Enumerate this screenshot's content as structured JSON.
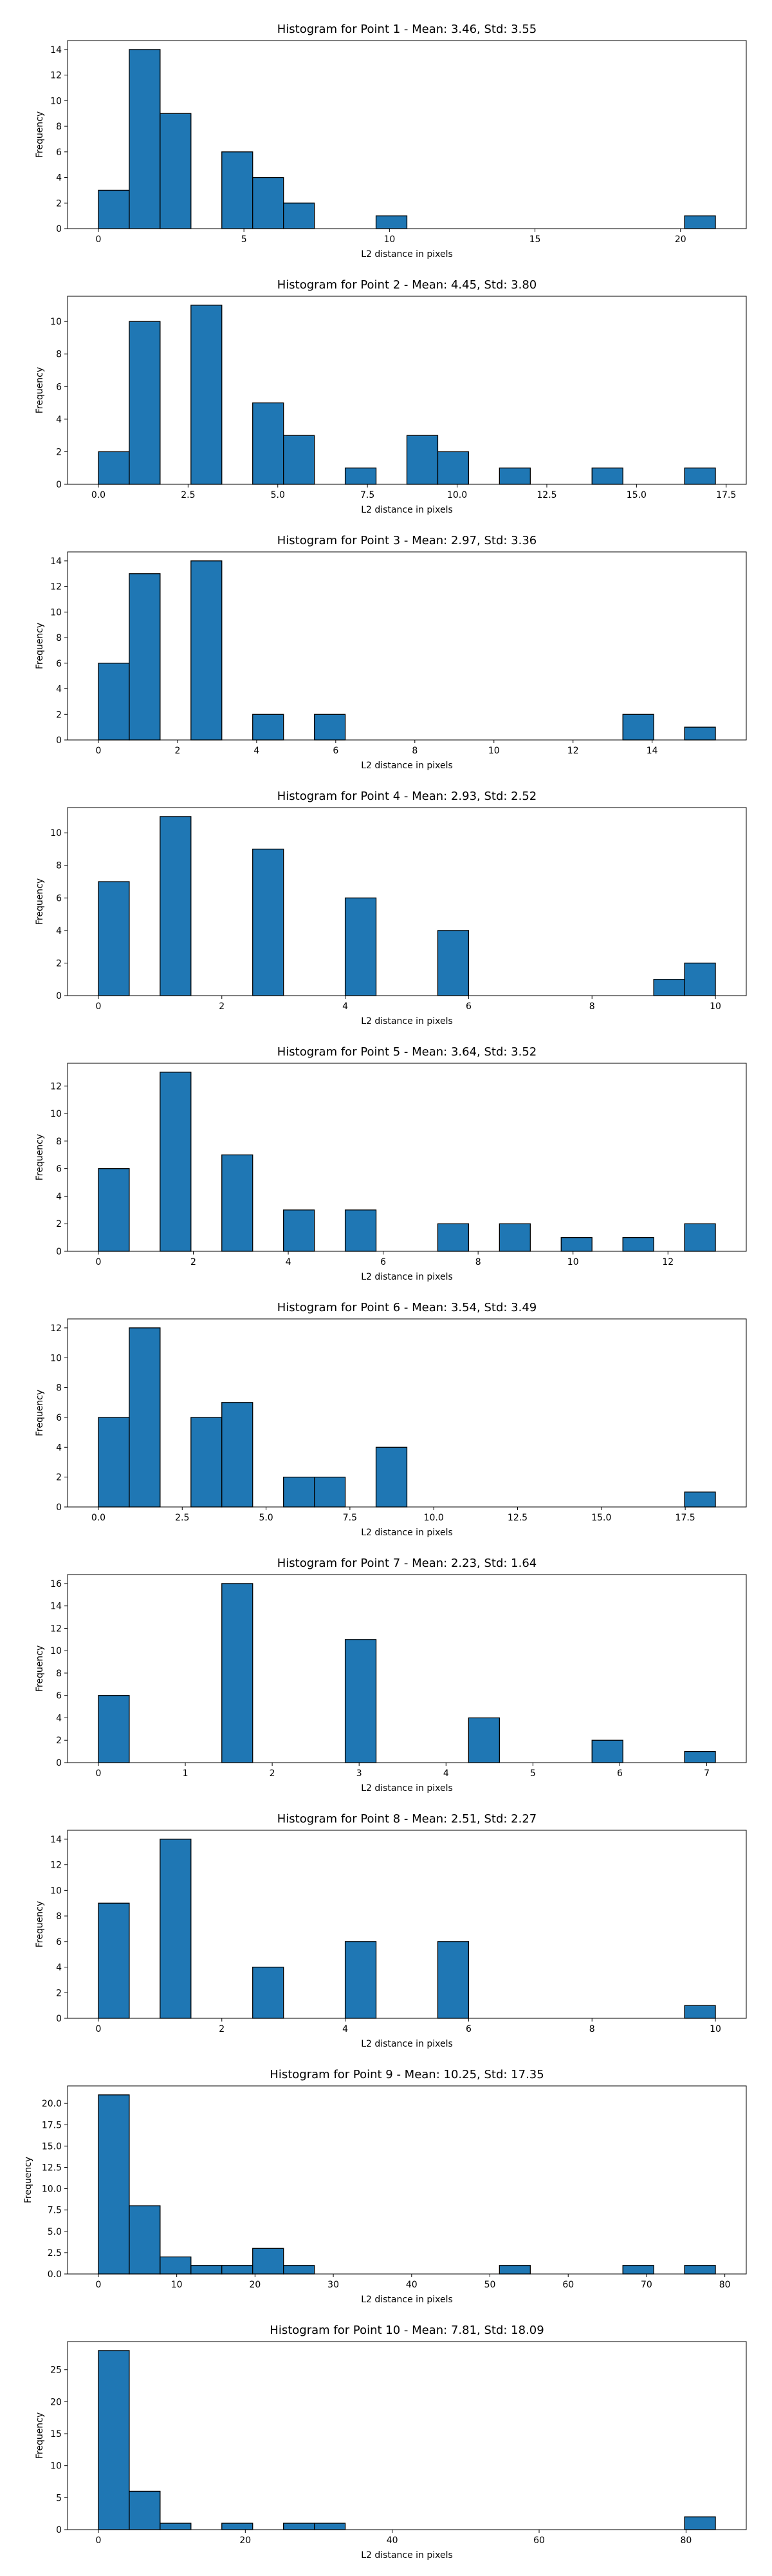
{
  "colors": {
    "bar_fill": "#1f77b4",
    "bar_edge": "#000000",
    "axis": "#000000",
    "background": "#ffffff"
  },
  "chart_data": [
    {
      "type": "bar",
      "title": "Histogram for Point 1 - Mean: 3.46, Std: 3.55",
      "xlabel": "L2 distance in pixels",
      "ylabel": "Frequency",
      "grid": false,
      "x_range": [
        0,
        21.2
      ],
      "xlim": [
        -1.06,
        22.26
      ],
      "ylim": [
        0,
        14.7
      ],
      "xticks": [
        0,
        5,
        10,
        15,
        20
      ],
      "yticks": [
        0,
        2,
        4,
        6,
        8,
        10,
        12,
        14
      ],
      "values": [
        3,
        14,
        9,
        0,
        6,
        4,
        2,
        0,
        0,
        1,
        0,
        0,
        0,
        0,
        0,
        0,
        0,
        0,
        0,
        1
      ]
    },
    {
      "type": "bar",
      "title": "Histogram for Point 2 - Mean: 4.45, Std: 3.80",
      "xlabel": "L2 distance in pixels",
      "ylabel": "Frequency",
      "grid": false,
      "x_range": [
        0,
        17.2
      ],
      "xlim": [
        -0.86,
        18.06
      ],
      "ylim": [
        0,
        11.55
      ],
      "xticks": [
        0.0,
        2.5,
        5.0,
        7.5,
        10.0,
        12.5,
        15.0,
        17.5
      ],
      "xtick_labels": [
        "0.0",
        "2.5",
        "5.0",
        "7.5",
        "10.0",
        "12.5",
        "15.0",
        "17.5"
      ],
      "yticks": [
        0,
        2,
        4,
        6,
        8,
        10
      ],
      "values": [
        2,
        10,
        0,
        11,
        0,
        5,
        3,
        0,
        1,
        0,
        3,
        2,
        0,
        1,
        0,
        0,
        1,
        0,
        0,
        1
      ]
    },
    {
      "type": "bar",
      "title": "Histogram for Point 3 - Mean: 2.97, Std: 3.36",
      "xlabel": "L2 distance in pixels",
      "ylabel": "Frequency",
      "grid": false,
      "x_range": [
        0,
        15.6
      ],
      "xlim": [
        -0.78,
        16.38
      ],
      "ylim": [
        0,
        14.7
      ],
      "xticks": [
        0,
        2,
        4,
        6,
        8,
        10,
        12,
        14
      ],
      "yticks": [
        0,
        2,
        4,
        6,
        8,
        10,
        12,
        14
      ],
      "values": [
        6,
        13,
        0,
        14,
        0,
        2,
        0,
        2,
        0,
        0,
        0,
        0,
        0,
        0,
        0,
        0,
        0,
        2,
        0,
        1
      ]
    },
    {
      "type": "bar",
      "title": "Histogram for Point 4 - Mean: 2.93, Std: 2.52",
      "xlabel": "L2 distance in pixels",
      "ylabel": "Frequency",
      "grid": false,
      "x_range": [
        0,
        10
      ],
      "xlim": [
        -0.5,
        10.5
      ],
      "ylim": [
        0,
        11.55
      ],
      "xticks": [
        0,
        2,
        4,
        6,
        8,
        10
      ],
      "yticks": [
        0,
        2,
        4,
        6,
        8,
        10
      ],
      "values": [
        7,
        0,
        11,
        0,
        0,
        9,
        0,
        0,
        6,
        0,
        0,
        4,
        0,
        0,
        0,
        0,
        0,
        0,
        1,
        2
      ]
    },
    {
      "type": "bar",
      "title": "Histogram for Point 5 - Mean: 3.64, Std: 3.52",
      "xlabel": "L2 distance in pixels",
      "ylabel": "Frequency",
      "grid": false,
      "x_range": [
        0,
        13
      ],
      "xlim": [
        -0.65,
        13.65
      ],
      "ylim": [
        0,
        13.65
      ],
      "xticks": [
        0,
        2,
        4,
        6,
        8,
        10,
        12
      ],
      "yticks": [
        0,
        2,
        4,
        6,
        8,
        10,
        12
      ],
      "values": [
        6,
        0,
        13,
        0,
        7,
        0,
        3,
        0,
        3,
        0,
        0,
        2,
        0,
        2,
        0,
        1,
        0,
        1,
        0,
        2
      ]
    },
    {
      "type": "bar",
      "title": "Histogram for Point 6 - Mean: 3.54, Std: 3.49",
      "xlabel": "L2 distance in pixels",
      "ylabel": "Frequency",
      "grid": false,
      "x_range": [
        0,
        18.4
      ],
      "xlim": [
        -0.92,
        19.32
      ],
      "ylim": [
        0,
        12.6
      ],
      "xticks": [
        0.0,
        2.5,
        5.0,
        7.5,
        10.0,
        12.5,
        15.0,
        17.5
      ],
      "xtick_labels": [
        "0.0",
        "2.5",
        "5.0",
        "7.5",
        "10.0",
        "12.5",
        "15.0",
        "17.5"
      ],
      "yticks": [
        0,
        2,
        4,
        6,
        8,
        10,
        12
      ],
      "values": [
        6,
        12,
        0,
        6,
        7,
        0,
        2,
        2,
        0,
        4,
        0,
        0,
        0,
        0,
        0,
        0,
        0,
        0,
        0,
        1
      ]
    },
    {
      "type": "bar",
      "title": "Histogram for Point 7 - Mean: 2.23, Std: 1.64",
      "xlabel": "L2 distance in pixels",
      "ylabel": "Frequency",
      "grid": false,
      "x_range": [
        0,
        7.1
      ],
      "xlim": [
        -0.355,
        7.455
      ],
      "ylim": [
        0,
        16.8
      ],
      "xticks": [
        0,
        1,
        2,
        3,
        4,
        5,
        6,
        7
      ],
      "yticks": [
        0,
        2,
        4,
        6,
        8,
        10,
        12,
        14,
        16
      ],
      "values": [
        6,
        0,
        0,
        0,
        16,
        0,
        0,
        0,
        11,
        0,
        0,
        0,
        4,
        0,
        0,
        0,
        2,
        0,
        0,
        1
      ]
    },
    {
      "type": "bar",
      "title": "Histogram for Point 8 - Mean: 2.51, Std: 2.27",
      "xlabel": "L2 distance in pixels",
      "ylabel": "Frequency",
      "grid": false,
      "x_range": [
        0,
        10
      ],
      "xlim": [
        -0.5,
        10.5
      ],
      "ylim": [
        0,
        14.7
      ],
      "xticks": [
        0,
        2,
        4,
        6,
        8,
        10
      ],
      "yticks": [
        0,
        2,
        4,
        6,
        8,
        10,
        12,
        14
      ],
      "values": [
        9,
        0,
        14,
        0,
        0,
        4,
        0,
        0,
        6,
        0,
        0,
        6,
        0,
        0,
        0,
        0,
        0,
        0,
        0,
        1
      ]
    },
    {
      "type": "bar",
      "title": "Histogram for Point 9 - Mean: 10.25, Std: 17.35",
      "xlabel": "L2 distance in pixels",
      "ylabel": "Frequency",
      "grid": false,
      "x_range": [
        0,
        78.8
      ],
      "xlim": [
        -3.94,
        82.74
      ],
      "ylim": [
        0,
        22.05
      ],
      "xticks": [
        0,
        10,
        20,
        30,
        40,
        50,
        60,
        70,
        80
      ],
      "yticks": [
        0.0,
        2.5,
        5.0,
        7.5,
        10.0,
        12.5,
        15.0,
        17.5,
        20.0
      ],
      "ytick_labels": [
        "0.0",
        "2.5",
        "5.0",
        "7.5",
        "10.0",
        "12.5",
        "15.0",
        "17.5",
        "20.0"
      ],
      "values": [
        21,
        8,
        2,
        1,
        1,
        3,
        1,
        0,
        0,
        0,
        0,
        0,
        0,
        1,
        0,
        0,
        0,
        1,
        0,
        1
      ]
    },
    {
      "type": "bar",
      "title": "Histogram for Point 10 - Mean: 7.81, Std: 18.09",
      "xlabel": "L2 distance in pixels",
      "ylabel": "Frequency",
      "grid": false,
      "x_range": [
        0,
        84
      ],
      "xlim": [
        -4.2,
        88.2
      ],
      "ylim": [
        0,
        29.4
      ],
      "xticks": [
        0,
        20,
        40,
        60,
        80
      ],
      "yticks": [
        0,
        5,
        10,
        15,
        20,
        25
      ],
      "values": [
        28,
        6,
        1,
        0,
        1,
        0,
        1,
        1,
        0,
        0,
        0,
        0,
        0,
        0,
        0,
        0,
        0,
        0,
        0,
        2
      ]
    }
  ]
}
